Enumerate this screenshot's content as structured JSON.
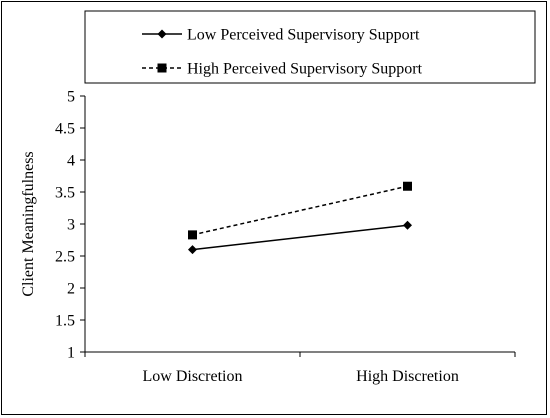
{
  "chart_data": {
    "type": "line",
    "title": "",
    "xlabel": "",
    "ylabel": "Client Meaningfulness",
    "categories": [
      "Low Discretion",
      "High Discretion"
    ],
    "ylim": [
      1,
      5
    ],
    "yticks": [
      "1",
      "1.5",
      "2",
      "2.5",
      "3",
      "3.5",
      "4",
      "4.5",
      "5"
    ],
    "grid": false,
    "legend_position": "top",
    "series": [
      {
        "name": "Low Perceived Supervisory Support",
        "values": [
          2.6,
          2.98
        ],
        "line_style": "solid",
        "marker": "diamond",
        "color": "#000000"
      },
      {
        "name": "High Perceived Supervisory Support",
        "values": [
          2.83,
          3.59
        ],
        "line_style": "dashed",
        "marker": "square",
        "color": "#000000"
      }
    ]
  }
}
